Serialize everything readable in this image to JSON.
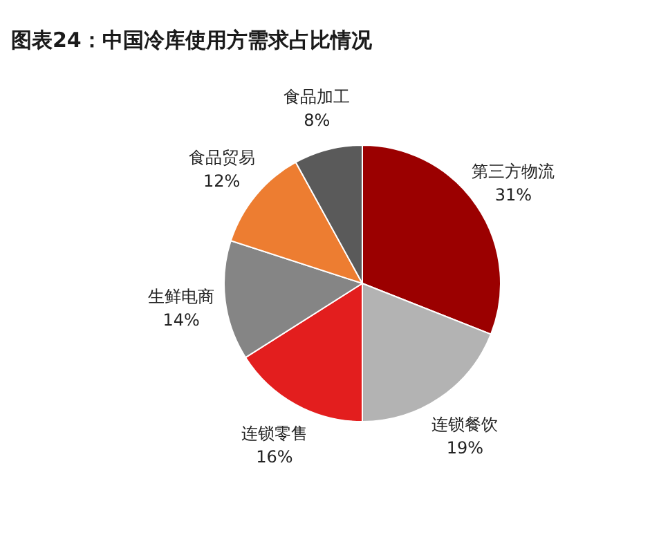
{
  "chart_data": {
    "type": "pie",
    "title": "图表24：中国冷库使用方需求占比情况",
    "categories": [
      "第三方物流",
      "连锁餐饮",
      "连锁零售",
      "生鲜电商",
      "食品贸易",
      "食品加工"
    ],
    "values": [
      31,
      19,
      16,
      14,
      12,
      8
    ],
    "colors": [
      "#9b0000",
      "#b3b3b3",
      "#e31e1e",
      "#858585",
      "#ed7d31",
      "#5a5a5a"
    ],
    "value_labels": [
      "31%",
      "19%",
      "16%",
      "14%",
      "12%",
      "8%"
    ],
    "legend": false
  }
}
